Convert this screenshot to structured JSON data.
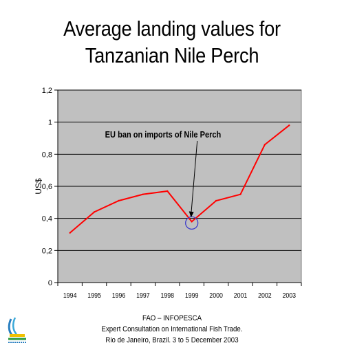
{
  "chart_data": {
    "type": "line",
    "title": [
      "Average landing values for",
      "Tanzanian Nile Perch"
    ],
    "ylabel": "US$",
    "xlabel": "",
    "x": [
      "1994",
      "1995",
      "1996",
      "1997",
      "1998",
      "1999",
      "2000",
      "2001",
      "2002",
      "2003"
    ],
    "series": [
      {
        "values": [
          0.31,
          0.44,
          0.51,
          0.55,
          0.57,
          0.38,
          0.51,
          0.55,
          0.86,
          0.98
        ],
        "color": "#ff0000"
      }
    ],
    "ylim": [
      0,
      1.2
    ],
    "yticks": [
      {
        "value": 0,
        "label": "0"
      },
      {
        "value": 0.2,
        "label": "0,2"
      },
      {
        "value": 0.4,
        "label": "0,4"
      },
      {
        "value": 0.6,
        "label": "0,6"
      },
      {
        "value": 0.8,
        "label": "0,8"
      },
      {
        "value": 1.0,
        "label": "1"
      },
      {
        "value": 1.2,
        "label": "1,2"
      }
    ],
    "grid": true,
    "plot_background": "#c0c0c0",
    "annotation": {
      "text": "EU ban on imports of Nile Perch",
      "target_x": "1999",
      "target_y": 0.38,
      "circle_color": "#3333cc"
    }
  },
  "footer": {
    "line1": "FAO – INFOPESCA",
    "line2": "Expert Consultation on International Fish Trade.",
    "line3": "Rio de Janeiro, Brazil. 3 to 5 December 2003"
  }
}
